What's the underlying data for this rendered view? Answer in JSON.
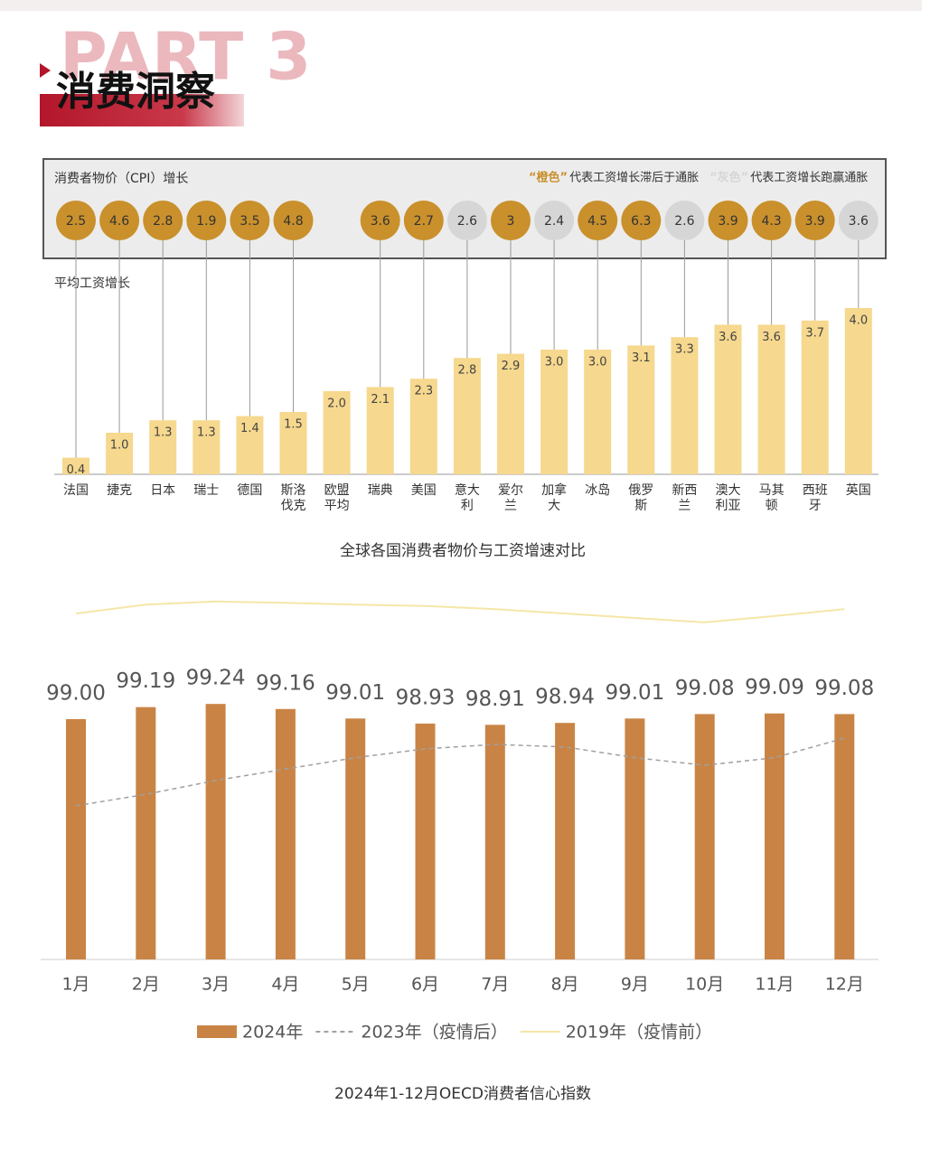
{
  "header": {
    "part": "PART 3",
    "title": "消费洞察"
  },
  "chart_data": [
    {
      "type": "bar",
      "title": "全球各国消费者物价与工资增速对比",
      "categories": [
        "法国",
        "捷克",
        "日本",
        "瑞士",
        "德国",
        "斯洛伐克",
        "欧盟平均",
        "瑞典",
        "美国",
        "意大利",
        "爱尔兰",
        "加拿大",
        "冰岛",
        "俄罗斯",
        "新西兰",
        "澳大利亚",
        "马其顿",
        "西班牙",
        "英国"
      ],
      "series": [
        {
          "name": "平均工资增长",
          "color": "#f6d88e",
          "values": [
            0.4,
            1.0,
            1.3,
            1.3,
            1.4,
            1.5,
            2.0,
            2.1,
            2.3,
            2.8,
            2.9,
            3.0,
            3.0,
            3.1,
            3.3,
            3.6,
            3.6,
            3.7,
            4.0
          ],
          "value_labels": [
            "0.4",
            "1.0",
            "1.3",
            "1.3",
            "1.4",
            "1.5",
            "2.0",
            "2.1",
            "2.3",
            "2.8",
            "2.9",
            "3.0",
            "3.0",
            "3.1",
            "3.3",
            "3.6",
            "3.6",
            "3.7",
            "4.0"
          ]
        },
        {
          "name": "消费者物价（CPI）增长",
          "values": [
            2.5,
            4.6,
            2.8,
            1.9,
            3.5,
            4.8,
            null,
            3.6,
            2.7,
            2.6,
            3,
            2.4,
            4.5,
            6.3,
            2.6,
            3.9,
            4.3,
            3.9,
            3.6
          ]
        }
      ],
      "notes": [
        {
          "highlight": "“橙色”",
          "text": "代表工资增长滞后于通胀",
          "color": "#c9902c"
        },
        {
          "highlight": "“灰色”",
          "text": "代表工资增长跑赢通胀",
          "color": "#d6d6d6"
        }
      ]
    },
    {
      "type": "bar",
      "title": "2024年1-12月OECD消费者信心指数",
      "categories": [
        "1月",
        "2月",
        "3月",
        "4月",
        "5月",
        "6月",
        "7月",
        "8月",
        "9月",
        "10月",
        "11月",
        "12月"
      ],
      "ylim": [
        95.2,
        101.2
      ],
      "series": [
        {
          "name": "2024年",
          "type": "bar",
          "color": "#c98445",
          "values": [
            99.0,
            99.19,
            99.24,
            99.16,
            99.01,
            98.93,
            98.91,
            98.94,
            99.01,
            99.08,
            99.09,
            99.08
          ],
          "value_labels": [
            "99.00",
            "99.19",
            "99.24",
            "99.16",
            "99.01",
            "98.93",
            "98.91",
            "98.94",
            "99.01",
            "99.08",
            "99.09",
            "99.08"
          ]
        },
        {
          "name": "2023年（疫情后）",
          "type": "line",
          "dashed": true,
          "color": "#a0a0a0",
          "values": [
            97.63,
            97.81,
            98.03,
            98.21,
            98.39,
            98.53,
            98.6,
            98.56,
            98.39,
            98.27,
            98.39,
            98.7
          ]
        },
        {
          "name": "2019年（疫情前）",
          "type": "line",
          "dashed": false,
          "color": "#f5e6a8",
          "values": [
            100.67,
            100.81,
            100.86,
            100.84,
            100.81,
            100.79,
            100.74,
            100.67,
            100.6,
            100.53,
            100.63,
            100.74
          ]
        }
      ]
    }
  ]
}
